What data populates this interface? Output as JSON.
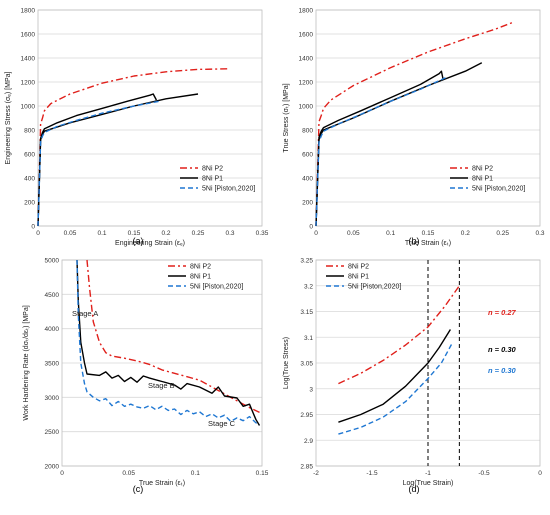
{
  "chart_data": [
    {
      "type": "line",
      "panel_label": "(a)",
      "xlabel": "Engineering Strain (εₑ)",
      "ylabel": "Engineering Stress (σₑ) [MPa]",
      "xlim": [
        0,
        0.35
      ],
      "ylim": [
        0,
        1800
      ],
      "xticks": [
        "0",
        "0.05",
        "0.1",
        "0.15",
        "0.2",
        "0.25",
        "0.3",
        "0.35"
      ],
      "yticks": [
        "0",
        "200",
        "400",
        "600",
        "800",
        "1000",
        "1200",
        "1400",
        "1600",
        "1800"
      ],
      "legend": "bottom-right",
      "series": [
        {
          "name": "8Ni P2",
          "style": "dashdot",
          "color": "#e0201b",
          "x": [
            0,
            0.004,
            0.007,
            0.01,
            0.02,
            0.05,
            0.1,
            0.15,
            0.2,
            0.25,
            0.3
          ],
          "y": [
            0,
            850,
            900,
            960,
            1020,
            1100,
            1190,
            1250,
            1285,
            1305,
            1310
          ]
        },
        {
          "name": "8Ni P1",
          "style": "solid",
          "color": "#000000",
          "x": [
            0,
            0.004,
            0.007,
            0.01,
            0.03,
            0.06,
            0.1,
            0.14,
            0.175,
            0.18,
            0.185
          ],
          "y": [
            0,
            730,
            780,
            810,
            860,
            920,
            980,
            1040,
            1090,
            1100,
            1050
          ]
        },
        {
          "name": "8Ni P1",
          "style": "solid",
          "color": "#000000",
          "x": [
            0,
            0.004,
            0.007,
            0.01,
            0.05,
            0.1,
            0.15,
            0.2,
            0.25
          ],
          "y": [
            0,
            720,
            760,
            790,
            860,
            930,
            1000,
            1060,
            1100
          ]
        },
        {
          "name": "5Ni [Piston,2020]",
          "style": "dashed",
          "color": "#1f77d2",
          "x": [
            0,
            0.004,
            0.007,
            0.01,
            0.03,
            0.06,
            0.1,
            0.15,
            0.19
          ],
          "y": [
            0,
            700,
            750,
            780,
            830,
            880,
            940,
            1000,
            1040
          ]
        }
      ]
    },
    {
      "type": "line",
      "panel_label": "(b)",
      "xlabel": "True Strain (εₜ)",
      "ylabel": "True Stress (σₜ) [MPa]",
      "xlim": [
        0,
        0.3
      ],
      "ylim": [
        0,
        1800
      ],
      "xticks": [
        "0",
        "0.05",
        "0.1",
        "0.15",
        "0.2",
        "0.25",
        "0.3"
      ],
      "yticks": [
        "0",
        "200",
        "400",
        "600",
        "800",
        "1000",
        "1200",
        "1400",
        "1600",
        "1800"
      ],
      "legend": "bottom-right",
      "series": [
        {
          "name": "8Ni P2",
          "style": "dashdot",
          "color": "#e0201b",
          "x": [
            0,
            0.004,
            0.007,
            0.01,
            0.02,
            0.05,
            0.1,
            0.15,
            0.2,
            0.24,
            0.265
          ],
          "y": [
            0,
            870,
            920,
            980,
            1050,
            1170,
            1320,
            1450,
            1560,
            1640,
            1700
          ]
        },
        {
          "name": "8Ni P1",
          "style": "solid",
          "color": "#000000",
          "x": [
            0,
            0.004,
            0.007,
            0.01,
            0.03,
            0.06,
            0.1,
            0.14,
            0.165,
            0.168,
            0.17
          ],
          "y": [
            0,
            740,
            790,
            820,
            880,
            960,
            1070,
            1180,
            1270,
            1290,
            1230
          ]
        },
        {
          "name": "8Ni P1",
          "style": "solid",
          "color": "#000000",
          "x": [
            0,
            0.004,
            0.007,
            0.01,
            0.05,
            0.1,
            0.15,
            0.2,
            0.222
          ],
          "y": [
            0,
            720,
            770,
            800,
            900,
            1040,
            1170,
            1290,
            1360
          ]
        },
        {
          "name": "5Ni [Piston,2020]",
          "style": "dashed",
          "color": "#1f77d2",
          "x": [
            0,
            0.004,
            0.007,
            0.01,
            0.03,
            0.06,
            0.1,
            0.14,
            0.175
          ],
          "y": [
            0,
            700,
            750,
            790,
            850,
            930,
            1040,
            1140,
            1240
          ]
        }
      ]
    },
    {
      "type": "line",
      "panel_label": "(c)",
      "xlabel": "True Strain (εₜ)",
      "ylabel": "Work Hardening Rate (dσₜ/dεₜ) [MPa]",
      "xlim": [
        0,
        0.16
      ],
      "ylim": [
        2000,
        5000
      ],
      "xticks": [
        "0",
        "0.05",
        "0.1",
        "0.15"
      ],
      "yticks": [
        "2000",
        "2500",
        "3000",
        "3500",
        "4000",
        "4500",
        "5000"
      ],
      "legend": "top-right",
      "annotations": [
        "Stage A",
        "Stage B",
        "Stage C"
      ],
      "series": [
        {
          "name": "8Ni P2",
          "style": "dashdot",
          "color": "#e0201b",
          "x": [
            0.02,
            0.022,
            0.025,
            0.03,
            0.035,
            0.04,
            0.05,
            0.06,
            0.07,
            0.08,
            0.09,
            0.1,
            0.11,
            0.12,
            0.13,
            0.14,
            0.15,
            0.158
          ],
          "y": [
            5000,
            4600,
            4100,
            3800,
            3650,
            3600,
            3570,
            3530,
            3480,
            3400,
            3350,
            3300,
            3250,
            3150,
            3050,
            2950,
            2850,
            2780
          ]
        },
        {
          "name": "8Ni P1",
          "style": "solid",
          "color": "#000000",
          "x": [
            0.012,
            0.013,
            0.015,
            0.018,
            0.02,
            0.03,
            0.035,
            0.04,
            0.045,
            0.05,
            0.055,
            0.06,
            0.065,
            0.07,
            0.08,
            0.09,
            0.095,
            0.1,
            0.11,
            0.12,
            0.125,
            0.13,
            0.14,
            0.145,
            0.15,
            0.155,
            0.158
          ],
          "y": [
            5000,
            4400,
            3800,
            3500,
            3340,
            3320,
            3370,
            3280,
            3320,
            3230,
            3290,
            3220,
            3310,
            3280,
            3230,
            3180,
            3120,
            3200,
            3150,
            3060,
            3150,
            3020,
            2990,
            2870,
            2900,
            2680,
            2590
          ]
        },
        {
          "name": "5Ni [Piston,2020]",
          "style": "dashed",
          "color": "#1f77d2",
          "x": [
            0.012,
            0.013,
            0.015,
            0.018,
            0.02,
            0.025,
            0.03,
            0.035,
            0.04,
            0.045,
            0.05,
            0.055,
            0.06,
            0.065,
            0.07,
            0.075,
            0.08,
            0.085,
            0.09,
            0.095,
            0.1,
            0.105,
            0.11,
            0.115,
            0.12,
            0.125,
            0.13,
            0.135,
            0.14,
            0.145,
            0.15,
            0.155,
            0.158
          ],
          "y": [
            5000,
            4200,
            3500,
            3200,
            3080,
            3000,
            2950,
            2980,
            2880,
            2940,
            2870,
            2900,
            2860,
            2840,
            2880,
            2820,
            2870,
            2810,
            2830,
            2750,
            2810,
            2760,
            2790,
            2720,
            2760,
            2700,
            2740,
            2650,
            2700,
            2660,
            2720,
            2630,
            2600
          ]
        }
      ]
    },
    {
      "type": "line",
      "panel_label": "(d)",
      "xlabel": "Log(True Strain)",
      "ylabel": "Log(True Stress)",
      "xlim": [
        -2,
        0
      ],
      "ylim": [
        2.85,
        3.25
      ],
      "xticks": [
        "-2",
        "-1.5",
        "-1",
        "-0.5",
        "0"
      ],
      "yticks": [
        "2.85",
        "2.9",
        "2.95",
        "3",
        "3.05",
        "3.1",
        "3.15",
        "3.2",
        "3.25"
      ],
      "legend": "top-left",
      "vlines": [
        -1.0,
        -0.72
      ],
      "annotations": [
        {
          "text": "n = 0.27",
          "color": "#e0201b"
        },
        {
          "text": "n = 0.30",
          "color": "#000000"
        },
        {
          "text": "n = 0.30",
          "color": "#1f77d2"
        }
      ],
      "series": [
        {
          "name": "8Ni P2",
          "style": "dashdot",
          "color": "#e0201b",
          "x": [
            -1.8,
            -1.6,
            -1.4,
            -1.2,
            -1.0,
            -0.85,
            -0.72
          ],
          "y": [
            3.01,
            3.03,
            3.055,
            3.085,
            3.12,
            3.16,
            3.2
          ]
        },
        {
          "name": "8Ni P1",
          "style": "solid",
          "color": "#000000",
          "x": [
            -1.8,
            -1.6,
            -1.4,
            -1.2,
            -1.0,
            -0.9,
            -0.8
          ],
          "y": [
            2.935,
            2.95,
            2.97,
            3.005,
            3.05,
            3.08,
            3.115
          ]
        },
        {
          "name": "5Ni [Piston,2020]",
          "style": "dashed",
          "color": "#1f77d2",
          "x": [
            -1.8,
            -1.6,
            -1.4,
            -1.2,
            -1.0,
            -0.88,
            -0.78
          ],
          "y": [
            2.912,
            2.925,
            2.945,
            2.975,
            3.02,
            3.05,
            3.09
          ]
        }
      ]
    }
  ]
}
